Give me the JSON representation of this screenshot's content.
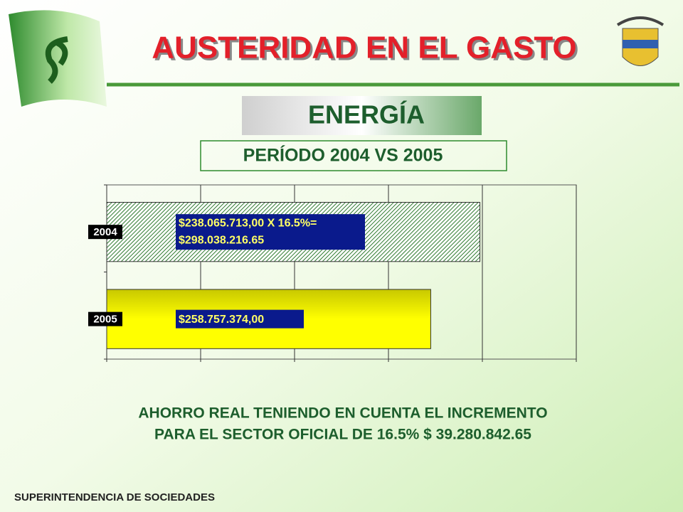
{
  "header": {
    "title": "AUSTERIDAD EN EL GASTO",
    "section": "ENERGÍA",
    "period": "PERÍODO 2004 VS 2005"
  },
  "chart_data": {
    "type": "bar",
    "orientation": "horizontal",
    "categories": [
      "2004",
      "2005"
    ],
    "values": [
      298038216.65,
      258757374
    ],
    "value_labels": [
      "$298.038.216.65",
      "$258.757.374,00"
    ],
    "formula_label": "$238.065.713,00 X 16.5%=",
    "colors": [
      "#2f7a2f",
      "#ffff00"
    ],
    "xlim": [
      0,
      375000000
    ],
    "xticks": [
      0,
      75000000,
      150000000,
      225000000,
      300000000,
      375000000
    ],
    "grid": true
  },
  "note": [
    "AHORRO REAL TENIENDO EN CUENTA EL INCREMENTO",
    "PARA EL SECTOR OFICIAL DE 16.5% $ 39.280.842.65"
  ],
  "footer": "SUPERINTENDENCIA DE SOCIEDADES"
}
